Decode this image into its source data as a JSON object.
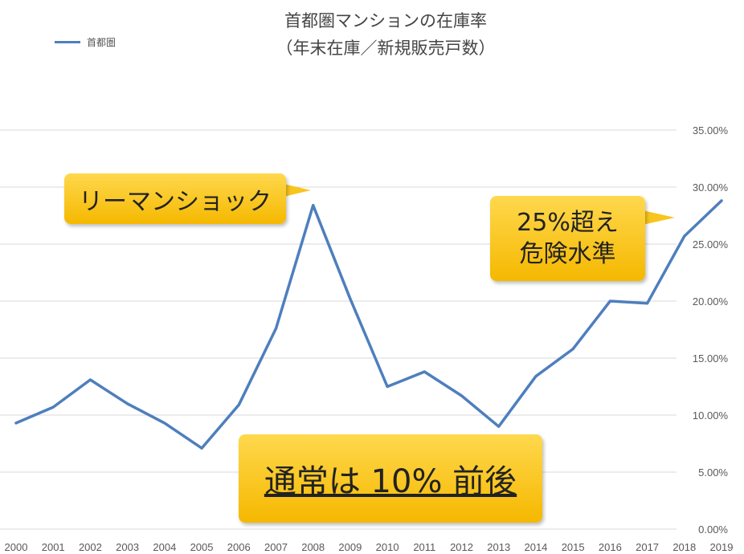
{
  "chart_data": {
    "type": "line",
    "title": "首都圏マンションの在庫率",
    "subtitle": "（年末在庫／新規販売戸数）",
    "x": [
      "2000",
      "2001",
      "2002",
      "2003",
      "2004",
      "2005",
      "2006",
      "2007",
      "2008",
      "2009",
      "2010",
      "2011",
      "2012",
      "2013",
      "2014",
      "2015",
      "2016",
      "2017",
      "2018",
      "2019"
    ],
    "series": [
      {
        "name": "首都圏",
        "values": [
          9.3,
          10.7,
          13.1,
          11.0,
          9.3,
          7.1,
          10.9,
          17.6,
          28.4,
          20.2,
          12.5,
          13.8,
          11.7,
          9.0,
          13.4,
          15.8,
          20.0,
          19.8,
          25.7,
          28.8
        ]
      }
    ],
    "ylim": [
      0,
      35
    ],
    "yticks": [
      "0.00%",
      "5.00%",
      "10.00%",
      "15.00%",
      "20.00%",
      "25.00%",
      "30.00%",
      "35.00%"
    ],
    "ytick_values": [
      0,
      5,
      10,
      15,
      20,
      25,
      30,
      35
    ],
    "grid": true,
    "legend": "top-left",
    "line_color": "#4e7fbd"
  },
  "callouts": {
    "lehman": "リーマンショック",
    "danger_line1": "25%超え",
    "danger_line2": "危険水準",
    "normal": "通常は 10% 前後"
  }
}
